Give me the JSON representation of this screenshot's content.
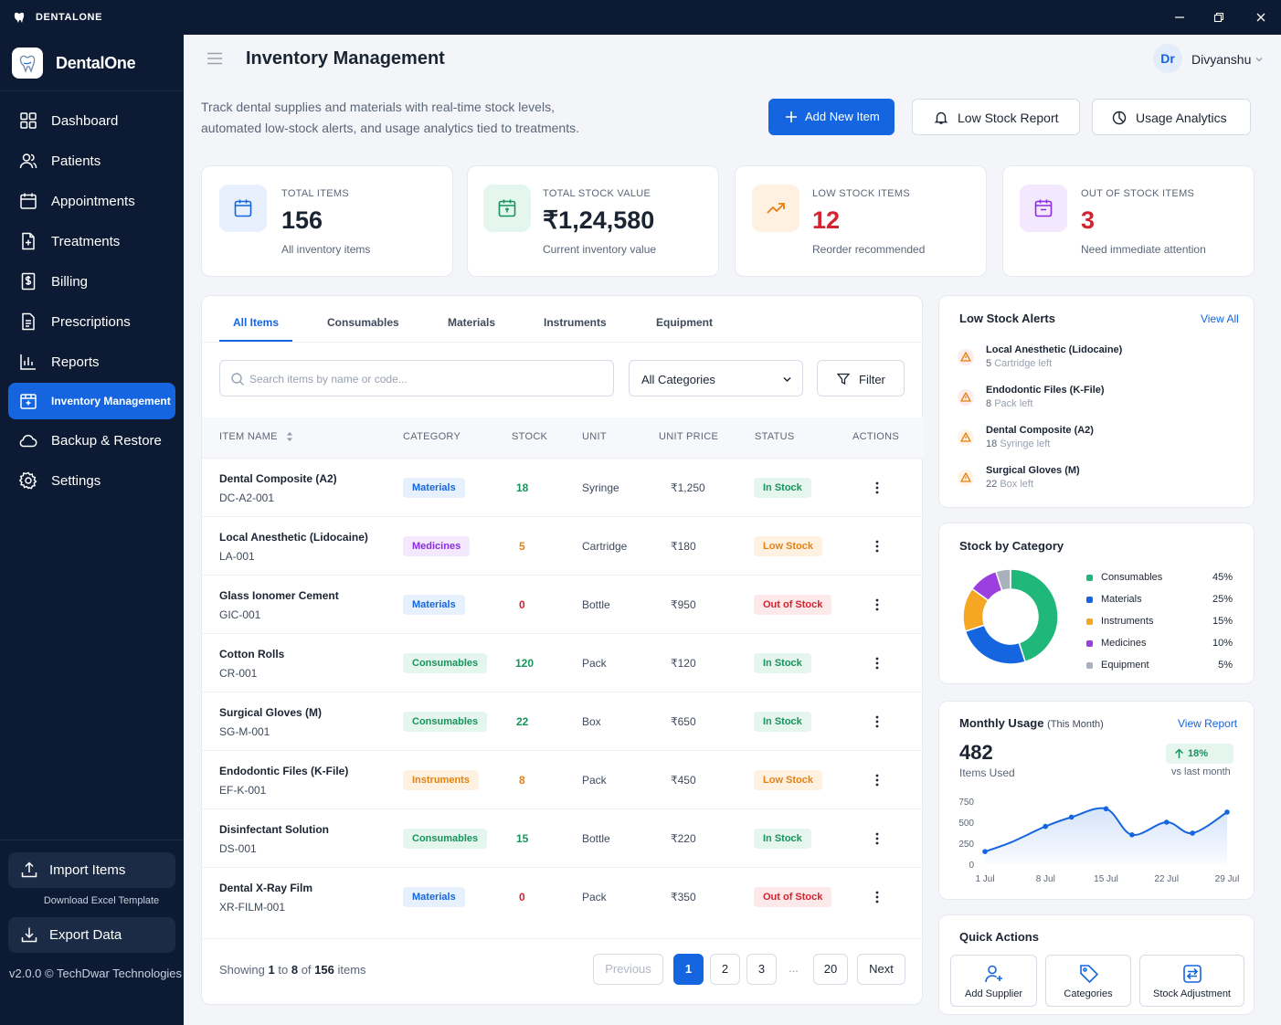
{
  "window": {
    "title": "DENTALONE"
  },
  "sidebar": {
    "brand": "DentalOne",
    "items": [
      {
        "label": "Dashboard",
        "icon": "dashboard-icon"
      },
      {
        "label": "Patients",
        "icon": "users-icon"
      },
      {
        "label": "Appointments",
        "icon": "calendar-icon"
      },
      {
        "label": "Treatments",
        "icon": "file-plus-icon"
      },
      {
        "label": "Billing",
        "icon": "receipt-icon"
      },
      {
        "label": "Prescriptions",
        "icon": "document-icon"
      },
      {
        "label": "Reports",
        "icon": "bar-chart-icon"
      },
      {
        "label": "Inventory Management",
        "icon": "box-icon",
        "active": true
      },
      {
        "label": "Backup & Restore",
        "icon": "cloud-icon"
      },
      {
        "label": "Settings",
        "icon": "gear-icon"
      }
    ],
    "import_label": "Import Items",
    "template_link": "Download Excel Template",
    "export_label": "Export Data",
    "version": "v2.0.0 © TechDwar Technologies"
  },
  "header": {
    "title": "Inventory Management",
    "avatar": "Dr",
    "user": "Divyanshu"
  },
  "description": "Track dental supplies and materials with real-time stock levels, automated low-stock alerts, and usage analytics tied to treatments.",
  "actions": {
    "add": "Add New Item",
    "low_stock": "Low Stock Report",
    "usage": "Usage Analytics"
  },
  "stats": [
    {
      "label": "TOTAL ITEMS",
      "value": "156",
      "sub": "All inventory items",
      "color": "#1565e0"
    },
    {
      "label": "TOTAL STOCK VALUE",
      "value": "₹1,24,580",
      "sub": "Current inventory value",
      "color": "#17935c"
    },
    {
      "label": "LOW STOCK ITEMS",
      "value": "12",
      "sub": "Reorder recommended",
      "color": "#e4810f"
    },
    {
      "label": "OUT OF STOCK ITEMS",
      "value": "3",
      "sub": "Need immediate attention",
      "color": "#8b2be2"
    }
  ],
  "tabs": [
    "All Items",
    "Consumables",
    "Materials",
    "Instruments",
    "Equipment"
  ],
  "search": {
    "placeholder": "Search items by name or code..."
  },
  "category_select": "All Categories",
  "filter_label": "Filter",
  "table": {
    "headers": [
      "ITEM NAME",
      "CATEGORY",
      "STOCK",
      "UNIT",
      "UNIT PRICE",
      "STATUS",
      "ACTIONS"
    ],
    "rows": [
      {
        "name": "Dental Composite (A2)",
        "code": "DC-A2-001",
        "category": "Materials",
        "stock": "18",
        "unit": "Syringe",
        "price": "₹1,250",
        "status": "In Stock"
      },
      {
        "name": "Local Anesthetic (Lidocaine)",
        "code": "LA-001",
        "category": "Medicines",
        "stock": "5",
        "unit": "Cartridge",
        "price": "₹180",
        "status": "Low Stock"
      },
      {
        "name": "Glass Ionomer Cement",
        "code": "GIC-001",
        "category": "Materials",
        "stock": "0",
        "unit": "Bottle",
        "price": "₹950",
        "status": "Out of Stock"
      },
      {
        "name": "Cotton Rolls",
        "code": "CR-001",
        "category": "Consumables",
        "stock": "120",
        "unit": "Pack",
        "price": "₹120",
        "status": "In Stock"
      },
      {
        "name": "Surgical Gloves (M)",
        "code": "SG-M-001",
        "category": "Consumables",
        "stock": "22",
        "unit": "Box",
        "price": "₹650",
        "status": "In Stock"
      },
      {
        "name": "Endodontic Files (K-File)",
        "code": "EF-K-001",
        "category": "Instruments",
        "stock": "8",
        "unit": "Pack",
        "price": "₹450",
        "status": "Low Stock"
      },
      {
        "name": "Disinfectant Solution",
        "code": "DS-001",
        "category": "Consumables",
        "stock": "15",
        "unit": "Bottle",
        "price": "₹220",
        "status": "In Stock"
      },
      {
        "name": "Dental X-Ray  Film",
        "code": "XR-FILM-001",
        "category": "Materials",
        "stock": "0",
        "unit": "Pack",
        "price": "₹350",
        "status": "Out of Stock"
      }
    ]
  },
  "pagination": {
    "showing_pre": "Showing",
    "from": "1",
    "to_word": "to",
    "to": "8",
    "of_word": "of",
    "total": "156",
    "items_word": "items",
    "prev": "Previous",
    "pages": [
      "1",
      "2",
      "3"
    ],
    "dots": "...",
    "last": "20",
    "next": "Next"
  },
  "low_stock": {
    "title": "Low Stock Alerts",
    "view_all": "View All",
    "items": [
      {
        "name": "Local Anesthetic (Lidocaine)",
        "count": "5",
        "rest": "Cartridge left"
      },
      {
        "name": "Endodontic Files (K-File)",
        "count": "8",
        "rest": "Pack left"
      },
      {
        "name": "Dental Composite (A2)",
        "count": "18",
        "rest": "Syringe left"
      },
      {
        "name": "Surgical Gloves (M)",
        "count": "22",
        "rest": "Box left"
      }
    ]
  },
  "stock_by_category": {
    "title": "Stock by Category",
    "slices": [
      {
        "name": "Consumables",
        "pct": "45%",
        "value": 45,
        "color": "#1fb77a"
      },
      {
        "name": "Materials",
        "pct": "25%",
        "value": 25,
        "color": "#1565e0"
      },
      {
        "name": "Instruments",
        "pct": "15%",
        "value": 15,
        "color": "#f5a623"
      },
      {
        "name": "Medicines",
        "pct": "10%",
        "value": 10,
        "color": "#9b3fe0"
      },
      {
        "name": "Equipment",
        "pct": "5%",
        "value": 5,
        "color": "#a9b1bd"
      }
    ]
  },
  "monthly_usage": {
    "title": "Monthly Usage",
    "title_note": "(This Month)",
    "view_report": "View Report",
    "value": "482",
    "value_label": "Items Used",
    "trend": "18%",
    "trend_sub": "vs last month",
    "chart_data": {
      "type": "line",
      "x": [
        1,
        4,
        8,
        11,
        15,
        18,
        22,
        25,
        29
      ],
      "values": [
        150,
        260,
        450,
        560,
        660,
        350,
        500,
        370,
        620
      ],
      "ylim": [
        0,
        750
      ],
      "yticks": [
        "750",
        "500",
        "250",
        "0"
      ],
      "xtick_labels": [
        "1 Jul",
        "8 Jul",
        "15 Jul",
        "22 Jul",
        "29 Jul"
      ]
    }
  },
  "quick_actions": {
    "title": "Quick Actions",
    "items": [
      "Add Supplier",
      "Categories",
      "Stock Adjustment"
    ]
  }
}
